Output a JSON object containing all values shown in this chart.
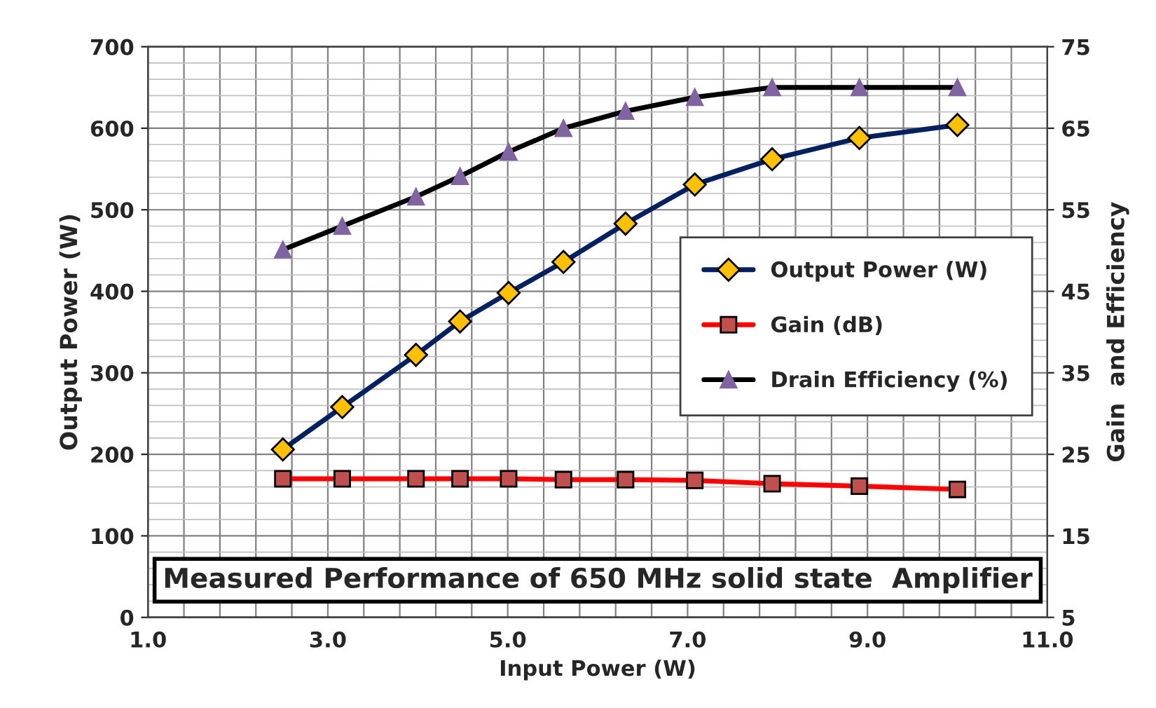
{
  "chart_data": {
    "type": "line",
    "title": "Measured Performance of 650 MHz solid state  Amplifier",
    "xlabel": "Input Power (W)",
    "ylabel": "Output Power (W)",
    "y2label": "Gain  and Efficiency",
    "x": [
      2.5,
      3.16,
      3.98,
      4.47,
      5.01,
      5.62,
      6.31,
      7.08,
      7.94,
      8.91,
      10.0
    ],
    "series": [
      {
        "name": "Output Power (W)",
        "color": "#002060",
        "marker": "diamond",
        "values": [
          206,
          258,
          322,
          363,
          398,
          436,
          483,
          531,
          562,
          588,
          604
        ]
      },
      {
        "name": "Gain (dB)",
        "color": "#ff0000",
        "marker": "square",
        "axis": "y2",
        "values": [
          22.0,
          22.0,
          22.0,
          22.0,
          22.0,
          21.9,
          21.9,
          21.8,
          21.4,
          21.1,
          20.7
        ]
      },
      {
        "name": "Drain Efficiency (%)",
        "color": "#000000",
        "marker": "triangle",
        "axis": "y2",
        "values": [
          50.1,
          53.0,
          56.6,
          59.1,
          62.1,
          65.0,
          67.1,
          68.8,
          70.0,
          70.0,
          70.0
        ]
      }
    ],
    "xlim": [
      1.0,
      11.0
    ],
    "xticks": [
      {
        "value": 1,
        "label": "1.0"
      },
      {
        "value": 3,
        "label": "3.0"
      },
      {
        "value": 5,
        "label": "5.0"
      },
      {
        "value": 7,
        "label": "7.0"
      },
      {
        "value": 9,
        "label": "9.0"
      },
      {
        "value": 11,
        "label": "11.0"
      }
    ],
    "ylim": [
      0,
      700
    ],
    "yticks": [
      0,
      100,
      200,
      300,
      400,
      500,
      600,
      700
    ],
    "y2lim": [
      5,
      75
    ],
    "y2ticks": [
      5,
      15,
      25,
      35,
      45,
      55,
      65,
      75
    ],
    "grid": true,
    "legend": "center right",
    "line_style": "solid"
  }
}
